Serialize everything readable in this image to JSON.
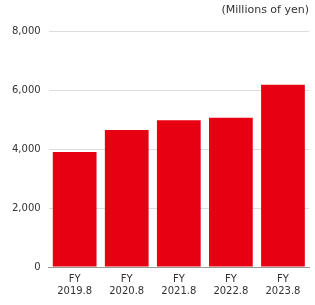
{
  "chart_data": {
    "type": "bar",
    "y_label": "(Millions of yen)",
    "categories": [
      [
        "FY",
        "2019.8"
      ],
      [
        "FY",
        "2020.8"
      ],
      [
        "FY",
        "2021.8"
      ],
      [
        "FY",
        "2022.8"
      ],
      [
        "FY",
        "2023.8"
      ]
    ],
    "values": [
      3900,
      4650,
      4980,
      5060,
      6180
    ],
    "color": "#e60012",
    "ylim": [
      0,
      8000
    ],
    "yticks": [
      0,
      {
        "value": 2000,
        "label": "2,000"
      },
      {
        "value": 4000,
        "label": "4,000"
      },
      {
        "value": 6000,
        "label": "6,000"
      },
      {
        "value": 8000,
        "label": "8,000"
      }
    ],
    "grid": true
  }
}
